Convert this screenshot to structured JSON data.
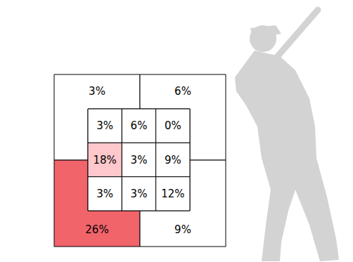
{
  "chart_data": {
    "type": "strike_zone",
    "data_labels": true,
    "inner": {
      "values": [
        [
          3,
          6,
          0
        ],
        [
          18,
          3,
          9
        ],
        [
          3,
          3,
          12
        ]
      ],
      "value_labels": [
        [
          "3%",
          "6%",
          "0%"
        ],
        [
          "18%",
          "3%",
          "9%"
        ],
        [
          "3%",
          "3%",
          "12%"
        ]
      ],
      "colors": [
        [
          "#ffffff",
          "#ffffff",
          "#ffffff"
        ],
        [
          "#ffc8cc",
          "#ffffff",
          "#ffffff"
        ],
        [
          "#ffffff",
          "#ffffff",
          "#ffffff"
        ]
      ]
    },
    "outer": {
      "values": [
        3,
        6,
        26,
        9
      ],
      "value_labels": [
        "3%",
        "6%",
        "26%",
        "9%"
      ],
      "colors": [
        "#ffffff",
        "#ffffff",
        "#f0646a",
        "#ffffff"
      ]
    }
  }
}
